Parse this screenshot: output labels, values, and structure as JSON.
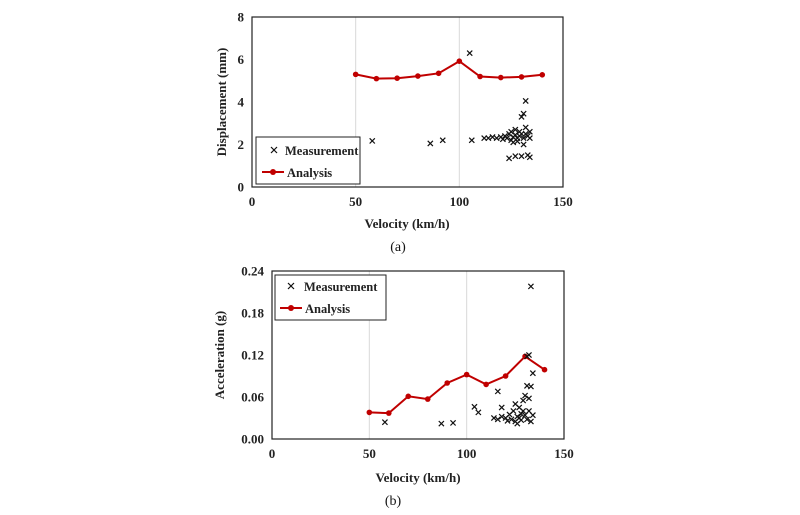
{
  "chart_data": [
    {
      "type": "scatter",
      "panel_label": "(a)",
      "xlabel": "Velocity (km/h)",
      "ylabel": "Displacement (mm)",
      "xlim": [
        0,
        150
      ],
      "ylim": [
        0,
        8
      ],
      "xticks": [
        "0",
        "50",
        "100",
        "150"
      ],
      "yticks": [
        "0",
        "2",
        "4",
        "6",
        "8"
      ],
      "grid": true,
      "legend_position": "bottom-left",
      "series": [
        {
          "name": "Analysis",
          "type": "line",
          "color": "#c00000",
          "x": [
            50,
            60,
            70,
            80,
            90,
            100,
            110,
            120,
            130,
            140
          ],
          "y": [
            5.3,
            5.1,
            5.12,
            5.22,
            5.35,
            5.92,
            5.2,
            5.15,
            5.18,
            5.28
          ]
        },
        {
          "name": "Measurement",
          "type": "scatter",
          "color": "#111111",
          "points": [
            [
              58,
              2.17
            ],
            [
              86,
              2.05
            ],
            [
              92,
              2.2
            ],
            [
              105,
              6.3
            ],
            [
              106,
              2.2
            ],
            [
              112,
              2.3
            ],
            [
              114,
              2.3
            ],
            [
              116,
              2.35
            ],
            [
              118,
              2.3
            ],
            [
              120,
              2.35
            ],
            [
              121,
              2.25
            ],
            [
              122,
              2.4
            ],
            [
              123,
              2.3
            ],
            [
              124,
              2.5
            ],
            [
              125,
              2.2
            ],
            [
              125,
              2.6
            ],
            [
              126,
              2.35
            ],
            [
              126,
              2.1
            ],
            [
              127,
              2.45
            ],
            [
              127,
              2.7
            ],
            [
              128,
              2.3
            ],
            [
              128,
              2.15
            ],
            [
              129,
              2.6
            ],
            [
              129,
              2.4
            ],
            [
              130,
              2.5
            ],
            [
              130,
              3.3
            ],
            [
              130,
              1.45
            ],
            [
              131,
              3.45
            ],
            [
              131,
              2.3
            ],
            [
              131,
              2.0
            ],
            [
              132,
              4.05
            ],
            [
              132,
              2.8
            ],
            [
              132,
              2.5
            ],
            [
              133,
              2.4
            ],
            [
              133,
              1.5
            ],
            [
              134,
              2.6
            ],
            [
              134,
              2.3
            ],
            [
              124,
              1.35
            ],
            [
              127,
              1.45
            ],
            [
              134,
              1.4
            ]
          ]
        }
      ]
    },
    {
      "type": "scatter",
      "panel_label": "(b)",
      "xlabel": "Velocity (km/h)",
      "ylabel": "Acceleration (g)",
      "xlim": [
        0,
        150
      ],
      "ylim": [
        0,
        0.24
      ],
      "xticks": [
        "0",
        "50",
        "100",
        "150"
      ],
      "yticks": [
        "0.00",
        "0.06",
        "0.12",
        "0.18",
        "0.24"
      ],
      "grid": true,
      "legend_position": "top-left",
      "series": [
        {
          "name": "Analysis",
          "type": "line",
          "color": "#c00000",
          "x": [
            50,
            60,
            70,
            80,
            90,
            100,
            110,
            120,
            130,
            140
          ],
          "y": [
            0.038,
            0.037,
            0.061,
            0.057,
            0.08,
            0.092,
            0.078,
            0.09,
            0.118,
            0.099
          ]
        },
        {
          "name": "Measurement",
          "type": "scatter",
          "color": "#111111",
          "points": [
            [
              58,
              0.024
            ],
            [
              87,
              0.022
            ],
            [
              93,
              0.023
            ],
            [
              104,
              0.046
            ],
            [
              106,
              0.038
            ],
            [
              116,
              0.068
            ],
            [
              118,
              0.045
            ],
            [
              114,
              0.03
            ],
            [
              116,
              0.028
            ],
            [
              118,
              0.032
            ],
            [
              120,
              0.03
            ],
            [
              121,
              0.026
            ],
            [
              122,
              0.035
            ],
            [
              123,
              0.028
            ],
            [
              124,
              0.04
            ],
            [
              125,
              0.05
            ],
            [
              125,
              0.025
            ],
            [
              126,
              0.032
            ],
            [
              127,
              0.045
            ],
            [
              127,
              0.03
            ],
            [
              128,
              0.036
            ],
            [
              128,
              0.027
            ],
            [
              129,
              0.055
            ],
            [
              129,
              0.04
            ],
            [
              130,
              0.062
            ],
            [
              130,
              0.034
            ],
            [
              131,
              0.118
            ],
            [
              131,
              0.076
            ],
            [
              131,
              0.028
            ],
            [
              132,
              0.12
            ],
            [
              132,
              0.058
            ],
            [
              132,
              0.04
            ],
            [
              133,
              0.218
            ],
            [
              133,
              0.075
            ],
            [
              134,
              0.094
            ],
            [
              134,
              0.034
            ],
            [
              133,
              0.025
            ],
            [
              126,
              0.022
            ]
          ]
        }
      ]
    }
  ]
}
